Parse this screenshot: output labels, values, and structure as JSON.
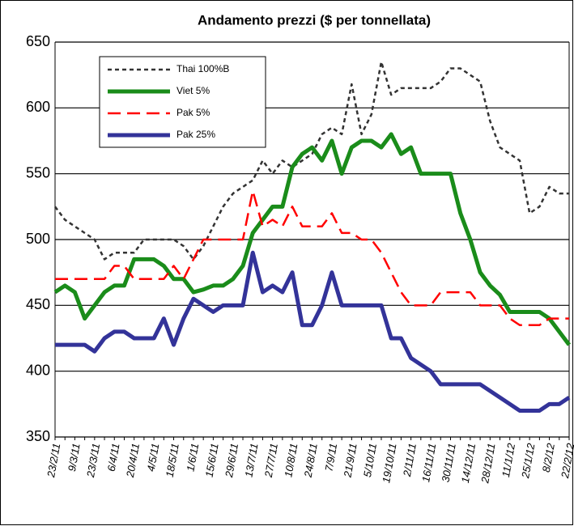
{
  "chart_data": {
    "type": "line",
    "title": "Andamento prezzi ($ per tonnellata)",
    "categories": [
      "23/2/11",
      null,
      "9/3/11",
      null,
      "23/3/11",
      null,
      "6/4/11",
      null,
      "20/4/11",
      null,
      "4/5/11",
      null,
      "18/5/11",
      null,
      "1/6/11",
      null,
      "15/6/11",
      null,
      "29/6/11",
      null,
      "13/7/11",
      null,
      "27/7/11",
      null,
      "10/8/11",
      null,
      "24/8/11",
      null,
      "7/9/11",
      null,
      "21/9/11",
      null,
      "5/10/11",
      null,
      "19/10/11",
      null,
      "2/11/11",
      null,
      "16/11/11",
      null,
      "30/11/11",
      null,
      "14/12/11",
      null,
      "28/12/11",
      null,
      "11/1/12",
      null,
      "25/1/12",
      null,
      "8/2/12",
      null,
      "22/2/12"
    ],
    "series": [
      {
        "name": "Thai 100%B",
        "color": "#333333",
        "dash": "short",
        "values": [
          525,
          515,
          510,
          505,
          500,
          485,
          490,
          490,
          490,
          500,
          500,
          500,
          500,
          495,
          485,
          495,
          510,
          525,
          535,
          540,
          545,
          560,
          550,
          560,
          555,
          560,
          565,
          580,
          585,
          580,
          618,
          580,
          595,
          635,
          610,
          615,
          615,
          615,
          615,
          620,
          630,
          630,
          625,
          620,
          590,
          570,
          565,
          560,
          520,
          525,
          540,
          535,
          535
        ]
      },
      {
        "name": "Viet 5%",
        "color": "#1a8c1a",
        "dash": "solid",
        "values": [
          460,
          465,
          460,
          440,
          450,
          460,
          465,
          465,
          485,
          485,
          485,
          480,
          470,
          470,
          460,
          462,
          465,
          465,
          470,
          480,
          505,
          515,
          525,
          525,
          555,
          565,
          570,
          560,
          575,
          550,
          570,
          575,
          575,
          570,
          580,
          565,
          570,
          550,
          550,
          550,
          550,
          520,
          500,
          475,
          465,
          458,
          445,
          445,
          445,
          445,
          440,
          430,
          420
        ]
      },
      {
        "name": "Pak 5%",
        "color": "#ff0000",
        "dash": "long",
        "values": [
          470,
          470,
          470,
          470,
          470,
          470,
          480,
          480,
          470,
          470,
          470,
          470,
          480,
          470,
          485,
          500,
          500,
          500,
          500,
          500,
          537,
          510,
          515,
          510,
          525,
          510,
          510,
          510,
          520,
          505,
          505,
          500,
          500,
          490,
          475,
          460,
          450,
          450,
          450,
          460,
          460,
          460,
          460,
          450,
          450,
          450,
          440,
          435,
          435,
          435,
          440,
          440,
          440
        ]
      },
      {
        "name": "Pak 25%",
        "color": "#333399",
        "dash": "solid",
        "values": [
          420,
          420,
          420,
          420,
          415,
          425,
          430,
          430,
          425,
          425,
          425,
          440,
          420,
          440,
          455,
          450,
          445,
          450,
          450,
          450,
          490,
          460,
          465,
          460,
          475,
          435,
          435,
          450,
          475,
          450,
          450,
          450,
          450,
          450,
          425,
          425,
          410,
          405,
          400,
          390,
          390,
          390,
          390,
          390,
          385,
          380,
          375,
          370,
          370,
          370,
          375,
          375,
          380
        ]
      }
    ],
    "ylim": [
      350,
      650
    ],
    "yticks": [
      350,
      400,
      450,
      500,
      550,
      600,
      650
    ],
    "grid": true
  }
}
